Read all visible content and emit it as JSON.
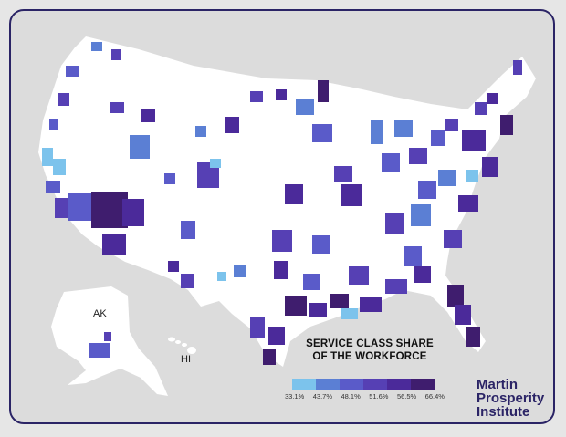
{
  "labels": {
    "alaska": "AK",
    "hawaii": "HI"
  },
  "legend": {
    "title_line1": "SERVICE CLASS SHARE",
    "title_line2": "OF THE WORKFORCE",
    "ticks": [
      "33.1%",
      "43.7%",
      "48.1%",
      "51.6%",
      "56.5%",
      "66.4%"
    ],
    "colors": [
      "#7cc3ec",
      "#5b7fd4",
      "#5a5bc9",
      "#5640b4",
      "#4b2a9a",
      "#3f1d6e"
    ]
  },
  "branding": {
    "line1": "Martin",
    "line2": "Prosperity",
    "line3": "Institute"
  }
}
